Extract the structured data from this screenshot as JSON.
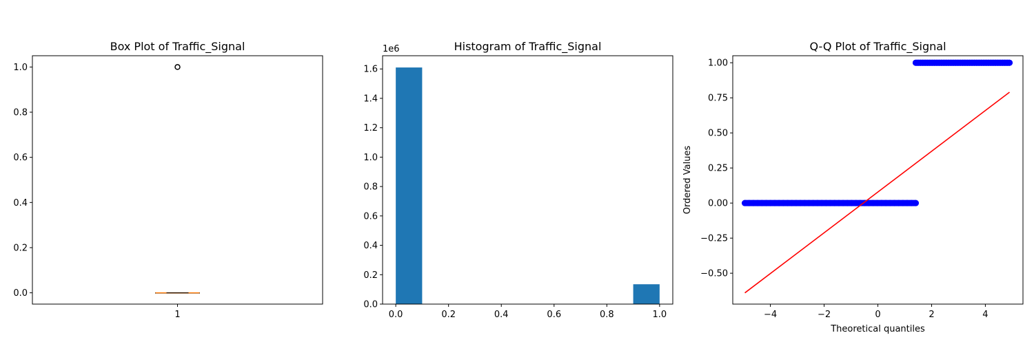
{
  "chart_data": [
    {
      "type": "box",
      "title": "Box Plot of Traffic_Signal",
      "xlabel": "",
      "ylabel": "",
      "categories": [
        "1"
      ],
      "ylim": [
        -0.05,
        1.05
      ],
      "yticks": [
        0.0,
        0.2,
        0.4,
        0.6,
        0.8,
        1.0
      ],
      "ytick_labels": [
        "0.0",
        "0.2",
        "0.4",
        "0.6",
        "0.8",
        "1.0"
      ],
      "box": {
        "min": 0,
        "q1": 0,
        "median": 0,
        "q3": 0,
        "max": 0,
        "outliers": [
          1.0
        ]
      },
      "colors": {
        "median": "#ff7f0e",
        "box": "#000000"
      }
    },
    {
      "type": "bar",
      "title": "Histogram of Traffic_Signal",
      "xlabel": "",
      "ylabel": "",
      "offset_text": "1e6",
      "bins": [
        [
          0.0,
          0.1
        ],
        [
          0.9,
          1.0
        ]
      ],
      "values": [
        1.61,
        0.135
      ],
      "xlim": [
        -0.05,
        1.05
      ],
      "ylim": [
        0,
        1.69
      ],
      "xticks": [
        0.0,
        0.2,
        0.4,
        0.6,
        0.8,
        1.0
      ],
      "xtick_labels": [
        "0.0",
        "0.2",
        "0.4",
        "0.6",
        "0.8",
        "1.0"
      ],
      "yticks": [
        0.0,
        0.2,
        0.4,
        0.6,
        0.8,
        1.0,
        1.2,
        1.4,
        1.6
      ],
      "ytick_labels": [
        "0.0",
        "0.2",
        "0.4",
        "0.6",
        "0.8",
        "1.0",
        "1.2",
        "1.4",
        "1.6"
      ],
      "colors": {
        "bar": "#1f77b4"
      }
    },
    {
      "type": "scatter",
      "title": "Q-Q Plot of Traffic_Signal",
      "xlabel": "Theoretical quantiles",
      "ylabel": "Ordered Values",
      "xlim": [
        -5.4,
        5.4
      ],
      "ylim": [
        -0.72,
        1.05
      ],
      "xticks": [
        -4,
        -2,
        0,
        2,
        4
      ],
      "xtick_labels": [
        "−4",
        "−2",
        "0",
        "2",
        "4"
      ],
      "yticks": [
        -0.5,
        -0.25,
        0.0,
        0.25,
        0.5,
        0.75,
        1.0
      ],
      "ytick_labels": [
        "−0.50",
        "−0.25",
        "0.00",
        "0.25",
        "0.50",
        "0.75",
        "1.00"
      ],
      "series": [
        {
          "values": {
            "x_range": [
              -4.95,
              1.41
            ],
            "y": 0.0
          }
        },
        {
          "values": {
            "x_range": [
              1.41,
              4.9
            ],
            "y": 1.0
          }
        }
      ],
      "fit_line": {
        "x": [
          -4.95,
          4.9
        ],
        "y": [
          -0.64,
          0.79
        ]
      },
      "colors": {
        "points": "#0000ff",
        "line": "#ff0000"
      }
    }
  ]
}
